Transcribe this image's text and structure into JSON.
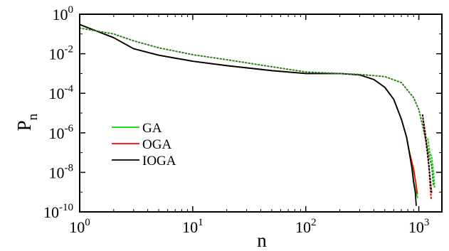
{
  "chart_data": {
    "type": "line",
    "xlabel": "n",
    "ylabel": "P",
    "ylabel_subscript": "n",
    "xscale": "log",
    "yscale": "log",
    "xlim": [
      1,
      1600
    ],
    "ylim": [
      1e-10,
      1
    ],
    "x_ticks": [
      {
        "value": 1,
        "base": "10",
        "exp": "0"
      },
      {
        "value": 10,
        "base": "10",
        "exp": "1"
      },
      {
        "value": 100,
        "base": "10",
        "exp": "2"
      },
      {
        "value": 1000,
        "base": "10",
        "exp": "3"
      }
    ],
    "y_ticks": [
      {
        "value": 1,
        "base": "10",
        "exp": "0"
      },
      {
        "value": 0.01,
        "base": "10",
        "exp": "-2"
      },
      {
        "value": 0.0001,
        "base": "10",
        "exp": "-4"
      },
      {
        "value": 1e-06,
        "base": "10",
        "exp": "-6"
      },
      {
        "value": 1e-08,
        "base": "10",
        "exp": "-8"
      },
      {
        "value": 1e-10,
        "base": "10",
        "exp": "-10"
      }
    ],
    "legend_position": "bottom-left",
    "series": [
      {
        "name": "GA",
        "color": "#00dd00",
        "style": "solid",
        "points": [
          [
            1,
            0.3
          ],
          [
            2,
            0.065
          ],
          [
            3,
            0.018
          ],
          [
            5,
            0.0085
          ],
          [
            10,
            0.0042
          ],
          [
            20,
            0.0025
          ],
          [
            50,
            0.0014
          ],
          [
            100,
            0.001
          ],
          [
            200,
            0.001
          ],
          [
            300,
            0.00085
          ],
          [
            400,
            0.0005
          ],
          [
            500,
            0.0002
          ],
          [
            600,
            5e-05
          ],
          [
            700,
            5e-06
          ],
          [
            780,
            6e-07
          ],
          [
            830,
            1e-07
          ],
          [
            870,
            3e-08
          ],
          [
            900,
            4e-09
          ],
          [
            940,
            1e-09
          ],
          [
            980,
            5e-10
          ]
        ]
      },
      {
        "name": "OGA",
        "color": "#ff0000",
        "style": "solid",
        "points": [
          [
            1,
            0.3
          ],
          [
            2,
            0.065
          ],
          [
            3,
            0.018
          ],
          [
            5,
            0.0085
          ],
          [
            10,
            0.0042
          ],
          [
            20,
            0.0025
          ],
          [
            50,
            0.0014
          ],
          [
            100,
            0.001
          ],
          [
            200,
            0.001
          ],
          [
            300,
            0.00085
          ],
          [
            400,
            0.0005
          ],
          [
            500,
            0.0002
          ],
          [
            600,
            5e-05
          ],
          [
            700,
            5e-06
          ],
          [
            780,
            6e-07
          ],
          [
            820,
            1.2e-07
          ],
          [
            860,
            4e-08
          ],
          [
            900,
            1.5e-08
          ],
          [
            940,
            3e-09
          ],
          [
            970,
            8e-10
          ]
        ]
      },
      {
        "name": "IOGA",
        "color": "#000000",
        "style": "solid",
        "points": [
          [
            1,
            0.3
          ],
          [
            2,
            0.065
          ],
          [
            3,
            0.018
          ],
          [
            5,
            0.0085
          ],
          [
            10,
            0.0042
          ],
          [
            20,
            0.0025
          ],
          [
            50,
            0.0014
          ],
          [
            100,
            0.001
          ],
          [
            200,
            0.001
          ],
          [
            300,
            0.00085
          ],
          [
            400,
            0.0005
          ],
          [
            500,
            0.0002
          ],
          [
            600,
            5e-05
          ],
          [
            700,
            5e-06
          ],
          [
            780,
            6e-07
          ],
          [
            830,
            8e-08
          ],
          [
            870,
            1.5e-08
          ],
          [
            900,
            3e-09
          ],
          [
            930,
            1e-09
          ],
          [
            950,
            2e-10
          ]
        ]
      },
      {
        "name": "",
        "color": "#2f7d1b",
        "style": "dotted",
        "points": [
          [
            1,
            0.2
          ],
          [
            2,
            0.1
          ],
          [
            3,
            0.045
          ],
          [
            5,
            0.02
          ],
          [
            10,
            0.009
          ],
          [
            20,
            0.005
          ],
          [
            50,
            0.0022
          ],
          [
            100,
            0.0012
          ],
          [
            200,
            0.001
          ],
          [
            300,
            0.0009
          ],
          [
            500,
            0.0007
          ],
          [
            700,
            0.00035
          ],
          [
            900,
            6e-05
          ],
          [
            1000,
            1.5e-05
          ],
          [
            1100,
            1.5e-06
          ],
          [
            1200,
            1.5e-07
          ],
          [
            1300,
            2e-08
          ],
          [
            1350,
            2e-09
          ]
        ]
      },
      {
        "name": "",
        "color": "#ff0000",
        "style": "dotted",
        "points": [
          [
            1100,
            4e-06
          ],
          [
            1150,
            8e-07
          ],
          [
            1200,
            8e-08
          ],
          [
            1230,
            2e-08
          ],
          [
            1260,
            2e-09
          ],
          [
            1290,
            4e-10
          ]
        ]
      },
      {
        "name": "",
        "color": "#000000",
        "style": "dotted",
        "points": [
          [
            1080,
            8e-06
          ],
          [
            1130,
            1e-06
          ],
          [
            1180,
            1.5e-07
          ],
          [
            1220,
            3e-08
          ],
          [
            1260,
            5e-09
          ],
          [
            1300,
            8e-10
          ]
        ]
      },
      {
        "name": "",
        "color": "#00dd00",
        "style": "dotted",
        "points": [
          [
            1200,
            5e-07
          ],
          [
            1250,
            1e-07
          ],
          [
            1300,
            6e-08
          ],
          [
            1330,
            2e-08
          ],
          [
            1360,
            6e-09
          ],
          [
            1380,
            1.5e-09
          ]
        ]
      }
    ]
  }
}
